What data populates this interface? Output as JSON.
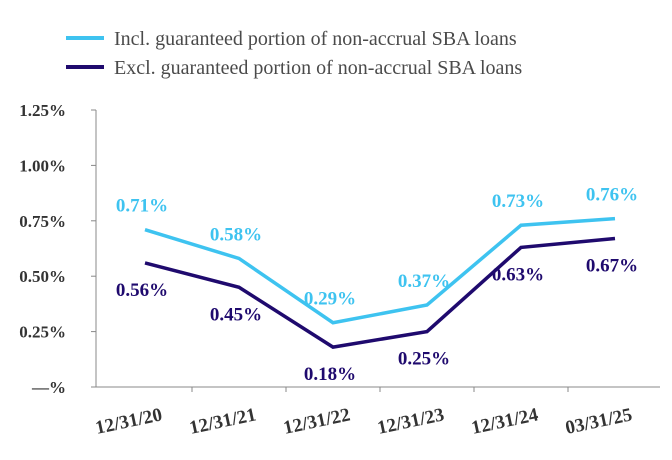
{
  "chart_data": {
    "type": "line",
    "categories": [
      "12/31/20",
      "12/31/21",
      "12/31/22",
      "12/31/23",
      "12/31/24",
      "03/31/25"
    ],
    "series": [
      {
        "name": "Incl. guaranteed portion of non-accrual SBA loans",
        "values": [
          0.71,
          0.58,
          0.29,
          0.37,
          0.73,
          0.76
        ],
        "labels": [
          "0.71%",
          "0.58%",
          "0.29%",
          "0.37%",
          "0.73%",
          "0.76%"
        ],
        "color": "#3ec3f0"
      },
      {
        "name": "Excl. guaranteed portion of non-accrual SBA loans",
        "values": [
          0.56,
          0.45,
          0.18,
          0.25,
          0.63,
          0.67
        ],
        "labels": [
          "0.56%",
          "0.45%",
          "0.18%",
          "0.25%",
          "0.63%",
          "0.67%"
        ],
        "color": "#1f0a6e"
      }
    ],
    "y_ticks": [
      0,
      0.25,
      0.5,
      0.75,
      1.0,
      1.25
    ],
    "y_tick_labels": [
      "—%",
      "0.25%",
      "0.50%",
      "0.75%",
      "1.00%",
      "1.25%"
    ],
    "ylim": [
      0,
      1.25
    ],
    "legend_position": "top",
    "title": "",
    "xlabel": "",
    "ylabel": ""
  }
}
